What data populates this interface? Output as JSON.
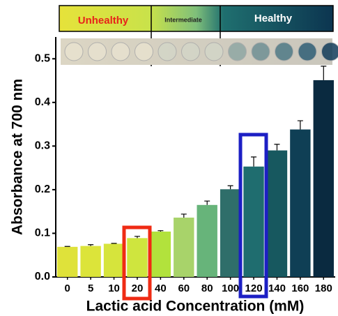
{
  "chart_data": {
    "type": "bar",
    "y_label": "Absorbance at 700 nm",
    "x_label": "Lactic acid Concentration (mM)",
    "annotations": [
      "Unhealthy",
      "Intermediate",
      "Healthy"
    ],
    "categories": [
      "0",
      "5",
      "10",
      "20",
      "40",
      "60",
      "80",
      "100",
      "120",
      "140",
      "160",
      "180"
    ],
    "values": [
      0.069,
      0.071,
      0.076,
      0.089,
      0.104,
      0.136,
      0.165,
      0.201,
      0.253,
      0.29,
      0.338,
      0.451
    ],
    "errors": [
      0.001,
      0.003,
      0.001,
      0.004,
      0.002,
      0.008,
      0.009,
      0.008,
      0.022,
      0.014,
      0.02,
      0.032
    ],
    "colors": [
      "#dfe23a",
      "#dce43a",
      "#d6e43c",
      "#cfe53e",
      "#b2e23c",
      "#a8d36a",
      "#67b47a",
      "#2f6e6a",
      "#1f6d6f",
      "#17585f",
      "#0f3f55",
      "#0a2a40"
    ],
    "ylim": [
      0,
      0.55
    ],
    "yticks": [
      {
        "value": 0,
        "label": "0.0"
      },
      0.1,
      0.2,
      0.3,
      0.4,
      0.5
    ]
  }
}
